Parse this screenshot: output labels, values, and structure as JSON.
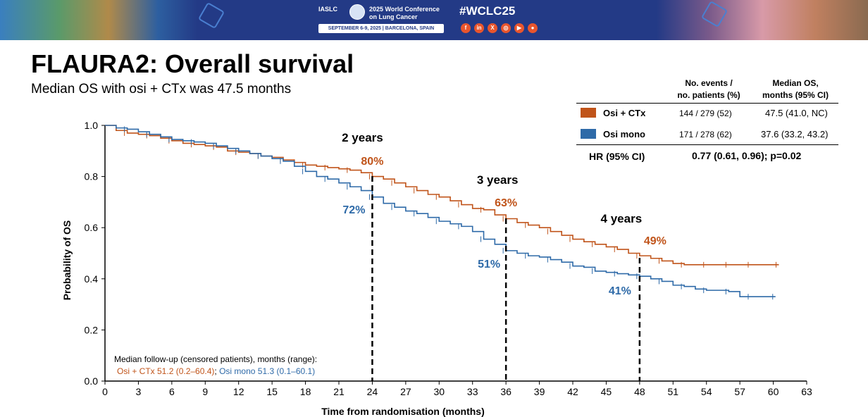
{
  "banner": {
    "conference_org": "IASLC",
    "conference_name_1": "2025 World Conference",
    "conference_name_2": "on Lung Cancer",
    "conference_dates": "SEPTEMBER 6-9, 2025 | BARCELONA, SPAIN",
    "hashtag": "#WCLC25",
    "social_icons": [
      "facebook-icon",
      "linkedin-icon",
      "x-icon",
      "instagram-icon",
      "youtube-icon",
      "wechat-icon"
    ]
  },
  "slide": {
    "title": "FLAURA2: Overall survival",
    "subtitle": "Median OS with osi + CTx was 47.5 months"
  },
  "legend_table": {
    "col1_header_1": "No. events /",
    "col1_header_2": "no. patients (%)",
    "col2_header_1": "Median OS,",
    "col2_header_2": "months (95% CI)",
    "rows": [
      {
        "name": "Osi + CTx",
        "color": "#c0541a",
        "events": "144 / 279 (52)",
        "median": "47.5 (41.0, NC)"
      },
      {
        "name": "Osi mono",
        "color": "#2e6aa8",
        "events": "171 / 278 (62)",
        "median": "37.6 (33.2, 43.2)"
      }
    ],
    "hr_label": "HR (95% CI)",
    "hr_value": "0.77 (0.61, 0.96); p=0.02"
  },
  "followup": {
    "label": "Median follow-up (censored patients), months (range):",
    "osi_ctx": "Osi + CTx 51.2 (0.2–60.4)",
    "separator": ";",
    "osi_mono": "Osi mono 51.3 (0.1–60.1)"
  },
  "chart_data": {
    "type": "line",
    "title": "",
    "xlabel": "Time from randomisation (months)",
    "ylabel": "Probability of OS",
    "xlim": [
      0,
      63
    ],
    "ylim": [
      0,
      1
    ],
    "x_ticks": [
      0,
      3,
      6,
      9,
      12,
      15,
      18,
      21,
      24,
      27,
      30,
      33,
      36,
      39,
      42,
      45,
      48,
      51,
      54,
      57,
      60,
      63
    ],
    "y_ticks": [
      0.0,
      0.2,
      0.4,
      0.6,
      0.8,
      1.0
    ],
    "y_tick_labels": [
      "0.0",
      "0.2",
      "0.4",
      "0.6",
      "0.8",
      "1.0"
    ],
    "series": [
      {
        "name": "Osi + CTx",
        "color": "#c0541a",
        "x": [
          0,
          1,
          2,
          3,
          4,
          5,
          6,
          7,
          8,
          9,
          10,
          11,
          12,
          13,
          14,
          15,
          16,
          17,
          18,
          19,
          20,
          21,
          22,
          23,
          24,
          25,
          26,
          27,
          28,
          29,
          30,
          31,
          32,
          33,
          34,
          35,
          36,
          37,
          38,
          39,
          40,
          41,
          42,
          43,
          44,
          45,
          46,
          47,
          48,
          49,
          50,
          51,
          52,
          53,
          54,
          55,
          56,
          57,
          58,
          59,
          60.5
        ],
        "y": [
          1.0,
          0.98,
          0.97,
          0.965,
          0.96,
          0.95,
          0.94,
          0.93,
          0.925,
          0.92,
          0.915,
          0.9,
          0.895,
          0.89,
          0.88,
          0.875,
          0.865,
          0.855,
          0.845,
          0.84,
          0.835,
          0.83,
          0.825,
          0.815,
          0.8,
          0.79,
          0.775,
          0.76,
          0.745,
          0.73,
          0.72,
          0.705,
          0.69,
          0.675,
          0.67,
          0.65,
          0.635,
          0.62,
          0.61,
          0.6,
          0.585,
          0.57,
          0.555,
          0.545,
          0.535,
          0.525,
          0.515,
          0.5,
          0.49,
          0.48,
          0.47,
          0.46,
          0.455,
          0.455,
          0.455,
          0.455,
          0.455,
          0.455,
          0.455,
          0.455,
          0.455
        ]
      },
      {
        "name": "Osi mono",
        "color": "#2e6aa8",
        "x": [
          0,
          1,
          2,
          3,
          4,
          5,
          6,
          7,
          8,
          9,
          10,
          11,
          12,
          13,
          14,
          15,
          16,
          17,
          18,
          19,
          20,
          21,
          22,
          23,
          24,
          25,
          26,
          27,
          28,
          29,
          30,
          31,
          32,
          33,
          34,
          35,
          36,
          37,
          38,
          39,
          40,
          41,
          42,
          43,
          44,
          45,
          46,
          47,
          48,
          49,
          50,
          51,
          52,
          53,
          54,
          55,
          56,
          57,
          58,
          59,
          60.2
        ],
        "y": [
          1.0,
          0.99,
          0.985,
          0.975,
          0.965,
          0.955,
          0.945,
          0.94,
          0.935,
          0.93,
          0.92,
          0.91,
          0.9,
          0.89,
          0.88,
          0.87,
          0.86,
          0.84,
          0.82,
          0.8,
          0.79,
          0.775,
          0.76,
          0.745,
          0.72,
          0.695,
          0.68,
          0.665,
          0.655,
          0.64,
          0.625,
          0.615,
          0.605,
          0.585,
          0.555,
          0.535,
          0.51,
          0.5,
          0.49,
          0.485,
          0.475,
          0.465,
          0.45,
          0.445,
          0.43,
          0.425,
          0.42,
          0.415,
          0.41,
          0.4,
          0.39,
          0.375,
          0.37,
          0.36,
          0.355,
          0.355,
          0.35,
          0.33,
          0.33,
          0.33,
          0.33
        ]
      }
    ],
    "timepoint_lines": [
      {
        "x": 24,
        "label": "2 years",
        "osi_ctx_value": "80%",
        "osi_mono_value": "72%"
      },
      {
        "x": 36,
        "label": "3 years",
        "osi_ctx_value": "63%",
        "osi_mono_value": "51%"
      },
      {
        "x": 48,
        "label": "4 years",
        "osi_ctx_value": "49%",
        "osi_mono_value": "41%"
      }
    ],
    "grid": false
  }
}
